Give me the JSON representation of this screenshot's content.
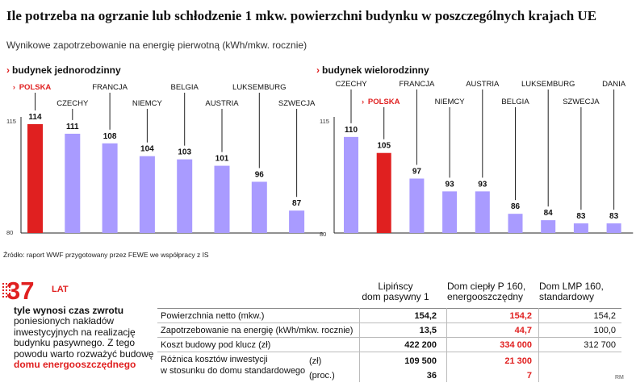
{
  "title": "Ile potrzeba na ogrzanie lub schłodzenie 1 mkw. powierzchni budynku w poszczególnych krajach UE",
  "subtitle": "Wynikowe zapotrzebowanie na energię pierwotną (kWh/mkw. rocznie)",
  "colors": {
    "highlight": "#e02020",
    "bar": "#a99bff",
    "axis": "#222222"
  },
  "chart_data": [
    {
      "type": "bar",
      "title": "budynek jednorodzinny",
      "categories": [
        "POLSKA",
        "CZECHY",
        "FRANCJA",
        "NIEMCY",
        "BELGIA",
        "AUSTRIA",
        "LUKSEMBURG",
        "SZWECJA"
      ],
      "values": [
        114,
        111,
        108,
        104,
        103,
        101,
        96,
        87
      ],
      "highlight": [
        "POLSKA"
      ],
      "ylim": [
        80,
        115
      ],
      "yticks": [
        "80",
        "115"
      ]
    },
    {
      "type": "bar",
      "title": "budynek wielorodzinny",
      "categories": [
        "CZECHY",
        "POLSKA",
        "FRANCJA",
        "NIEMCY",
        "AUSTRIA",
        "BELGIA",
        "LUKSEMBURG",
        "SZWECJA",
        "DANIA"
      ],
      "values": [
        110,
        105,
        97,
        93,
        93,
        86,
        84,
        83,
        83
      ],
      "highlight": [
        "POLSKA"
      ],
      "ylim": [
        80,
        115
      ],
      "yticks": [
        "80",
        "115"
      ]
    }
  ],
  "source": "Źródło: raport WWF przygotowany przez FEWE we współpracy z IS",
  "left_text": {
    "big_number": "37",
    "unit": "LAT",
    "headline": "tyle wynosi czas zwrotu",
    "body": "poniesionych nakładów inwestycyjnych na realizację budynku pasywnego. Z tego powodu warto rozważyć budowę ",
    "body_highlight": "domu energooszczędnego"
  },
  "table": {
    "headers": [
      {
        "l1": "Lipińscy",
        "l2": "dom pasywny 1"
      },
      {
        "l1": "Dom ciepły P 160,",
        "l2": "energooszczędny"
      },
      {
        "l1": "Dom  LMP 160,",
        "l2": "standardowy"
      }
    ],
    "rows": [
      {
        "label": "Powierzchnia netto (mkw.)",
        "sub": "",
        "values": [
          "154,2",
          "154,2",
          "154,2"
        ]
      },
      {
        "label": "Zapotrzebowanie na energię (kWh/mkw. rocznie)",
        "sub": "",
        "values": [
          "13,5",
          "44,7",
          "100,0"
        ]
      },
      {
        "label": "Koszt budowy pod klucz (zł)",
        "sub": "",
        "values": [
          "422 200",
          "334 000",
          "312 700"
        ]
      },
      {
        "label": "Różnica kosztów inwestycji",
        "sub": "(zł)",
        "values": [
          "109 500",
          "21 300",
          ""
        ]
      },
      {
        "label": "w stosunku do domu standardowego",
        "sub": "(proc.)",
        "values": [
          "36",
          "7",
          ""
        ]
      }
    ]
  },
  "credit": "RM"
}
